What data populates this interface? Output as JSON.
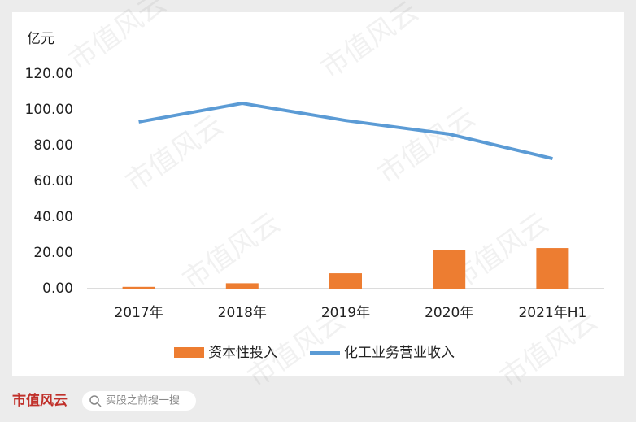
{
  "chart_data": {
    "type": "bar-line",
    "y_unit": "亿元",
    "categories": [
      "2017年",
      "2018年",
      "2019年",
      "2020年",
      "2021年H1"
    ],
    "series": [
      {
        "name": "资本性投入",
        "type": "bar",
        "color": "#ed7d31",
        "values": [
          1.0,
          3.0,
          8.6,
          21.4,
          22.7
        ]
      },
      {
        "name": "化工业务营业收入",
        "type": "line",
        "color": "#5b9bd5",
        "values": [
          93.2,
          103.6,
          94.0,
          86.4,
          72.7
        ]
      }
    ],
    "ylim": [
      0,
      120
    ],
    "yticks": [
      {
        "value": 0,
        "label": "0.00"
      },
      {
        "value": 20,
        "label": "20.00"
      },
      {
        "value": 40,
        "label": "40.00"
      },
      {
        "value": 60,
        "label": "60.00"
      },
      {
        "value": 80,
        "label": "80.00"
      },
      {
        "value": 100,
        "label": "100.00"
      },
      {
        "value": 120,
        "label": "120.00"
      }
    ],
    "grid": false
  },
  "watermark": "市值风云",
  "footer": {
    "logo": "市值风云",
    "search": "买股之前搜一搜"
  }
}
